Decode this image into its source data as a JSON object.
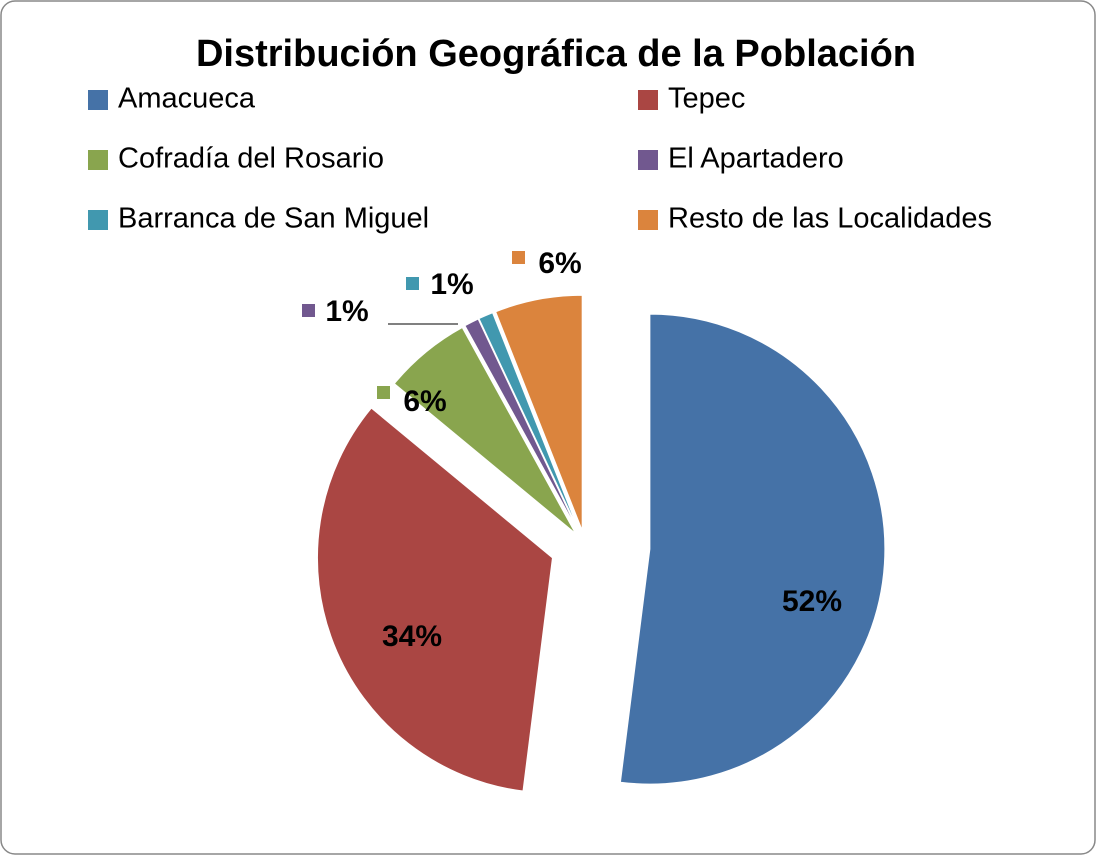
{
  "chart_data": {
    "type": "pie",
    "title": "Distribución Geográfica de la Población",
    "categories": [
      "Amacueca",
      "Tepec",
      "Cofradía  del Rosario",
      "El Apartadero",
      "Barranca de San Miguel",
      "Resto de las Localidades"
    ],
    "values": [
      52,
      34,
      6,
      1,
      1,
      6
    ],
    "value_labels": [
      "52%",
      "34%",
      "6%",
      "1%",
      "1%",
      "6%"
    ],
    "colors": [
      "#4572a7",
      "#aa4643",
      "#89a54e",
      "#71588f",
      "#4198af",
      "#db843d"
    ],
    "legend": "top"
  }
}
